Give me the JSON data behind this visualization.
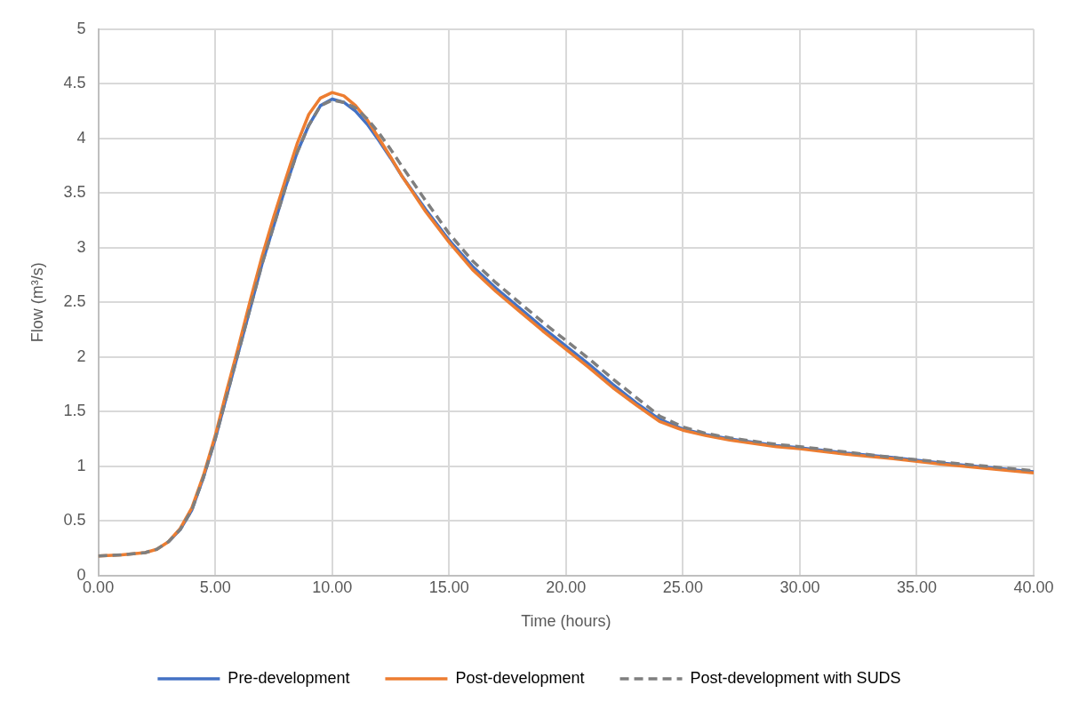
{
  "chart_data": {
    "type": "line",
    "xlabel": "Time (hours)",
    "ylabel": "Flow (m³/s)",
    "x": [
      0,
      1,
      2,
      2.5,
      3,
      3.5,
      4,
      4.5,
      5,
      5.5,
      6,
      6.5,
      7,
      7.5,
      8,
      8.5,
      9,
      9.5,
      10,
      10.5,
      11,
      11.5,
      12,
      12.5,
      13,
      14,
      15,
      16,
      17,
      18,
      19,
      20,
      21,
      22,
      23,
      24,
      25,
      26,
      27,
      28,
      29,
      30,
      32,
      34,
      36,
      38,
      40
    ],
    "series": [
      {
        "name": "Pre-development",
        "color": "#4472c4",
        "line_style": "solid",
        "values": [
          null,
          null,
          null,
          null,
          0.31,
          0.42,
          0.6,
          0.9,
          1.25,
          1.65,
          2.05,
          2.45,
          2.85,
          3.2,
          3.55,
          3.87,
          4.12,
          4.3,
          4.36,
          4.33,
          4.25,
          4.13,
          3.98,
          3.82,
          3.65,
          3.35,
          3.07,
          2.83,
          2.63,
          2.45,
          2.27,
          2.1,
          1.93,
          1.75,
          1.58,
          1.43,
          1.34,
          1.29,
          1.25,
          1.22,
          1.19,
          1.17,
          1.12,
          1.08,
          1.03,
          0.99,
          0.95
        ]
      },
      {
        "name": "Post-development",
        "color": "#ed7d31",
        "line_style": "solid",
        "values": [
          0.18,
          0.19,
          0.21,
          0.24,
          0.31,
          0.43,
          0.62,
          0.92,
          1.28,
          1.7,
          2.1,
          2.52,
          2.92,
          3.28,
          3.62,
          3.95,
          4.22,
          4.37,
          4.42,
          4.39,
          4.3,
          4.17,
          4.0,
          3.83,
          3.65,
          3.33,
          3.05,
          2.8,
          2.6,
          2.42,
          2.24,
          2.07,
          1.9,
          1.72,
          1.56,
          1.41,
          1.33,
          1.28,
          1.24,
          1.21,
          1.18,
          1.16,
          1.11,
          1.07,
          1.02,
          0.98,
          0.94
        ]
      },
      {
        "name": "Post-development with SUDS",
        "color": "#7f7f7f",
        "line_style": "dashed",
        "values": [
          0.18,
          0.19,
          0.21,
          0.24,
          0.31,
          0.42,
          0.6,
          0.9,
          1.25,
          1.65,
          2.05,
          2.45,
          2.85,
          3.2,
          3.55,
          3.87,
          4.12,
          4.3,
          4.35,
          4.33,
          4.28,
          4.18,
          4.05,
          3.9,
          3.74,
          3.43,
          3.13,
          2.88,
          2.68,
          2.5,
          2.32,
          2.15,
          1.98,
          1.8,
          1.63,
          1.46,
          1.36,
          1.3,
          1.26,
          1.23,
          1.2,
          1.18,
          1.13,
          1.08,
          1.04,
          1.0,
          0.96
        ]
      }
    ],
    "xlim": [
      0,
      40
    ],
    "xticks": [
      {
        "value": 0,
        "label": "0.00"
      },
      {
        "value": 5,
        "label": "5.00"
      },
      {
        "value": 10,
        "label": "10.00"
      },
      {
        "value": 15,
        "label": "15.00"
      },
      {
        "value": 20,
        "label": "20.00"
      },
      {
        "value": 25,
        "label": "25.00"
      },
      {
        "value": 30,
        "label": "30.00"
      },
      {
        "value": 35,
        "label": "35.00"
      },
      {
        "value": 40,
        "label": "40.00"
      }
    ],
    "ylim": [
      0,
      5
    ],
    "yticks": [
      0,
      0.5,
      1,
      1.5,
      2,
      2.5,
      3,
      3.5,
      4,
      4.5,
      5
    ],
    "grid": true,
    "legend": "bottom",
    "marker": "none"
  }
}
